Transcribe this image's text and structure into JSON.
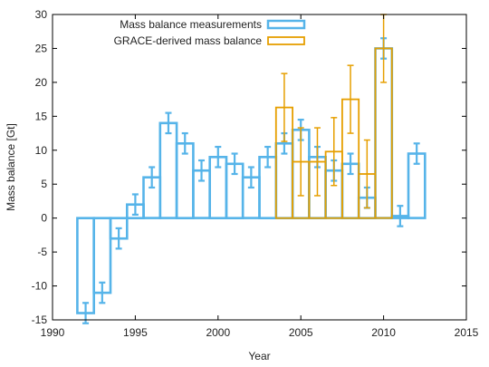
{
  "chart_data": {
    "type": "bar",
    "title": "",
    "xlabel": "Year",
    "ylabel": "Mass balance [Gt]",
    "xlim": [
      1990,
      2015
    ],
    "ylim": [
      -15,
      30
    ],
    "xticks": [
      "1990",
      "1995",
      "2000",
      "2005",
      "2010",
      "2015"
    ],
    "yticks": [
      "-15",
      "-10",
      "-5",
      "0",
      "5",
      "10",
      "15",
      "20",
      "25",
      "30"
    ],
    "grid": false,
    "legend_position": "top",
    "series": [
      {
        "name": "Mass balance measurements",
        "color": "#56b4e9",
        "x": [
          1992,
          1993,
          1994,
          1995,
          1996,
          1997,
          1998,
          1999,
          2000,
          2001,
          2002,
          2003,
          2004,
          2005,
          2006,
          2007,
          2008,
          2009,
          2010,
          2011,
          2012
        ],
        "values": [
          -14,
          -11,
          -3,
          2,
          6,
          14,
          11,
          7,
          9,
          8,
          6,
          9,
          11,
          13,
          9,
          7,
          8,
          3,
          25,
          0.3,
          9.5
        ],
        "error": [
          1.5,
          1.5,
          1.5,
          1.5,
          1.5,
          1.5,
          1.5,
          1.5,
          1.5,
          1.5,
          1.5,
          1.5,
          1.5,
          1.5,
          1.5,
          1.5,
          1.5,
          1.5,
          1.5,
          1.5,
          1.5
        ]
      },
      {
        "name": "GRACE-derived mass balance",
        "color": "#e69f00",
        "x": [
          2004,
          2005,
          2006,
          2007,
          2008,
          2009,
          2010
        ],
        "values": [
          16.3,
          8.3,
          8.3,
          9.8,
          17.5,
          6.5,
          25
        ],
        "error": [
          5,
          5,
          5,
          5,
          5,
          5,
          5
        ]
      }
    ]
  }
}
